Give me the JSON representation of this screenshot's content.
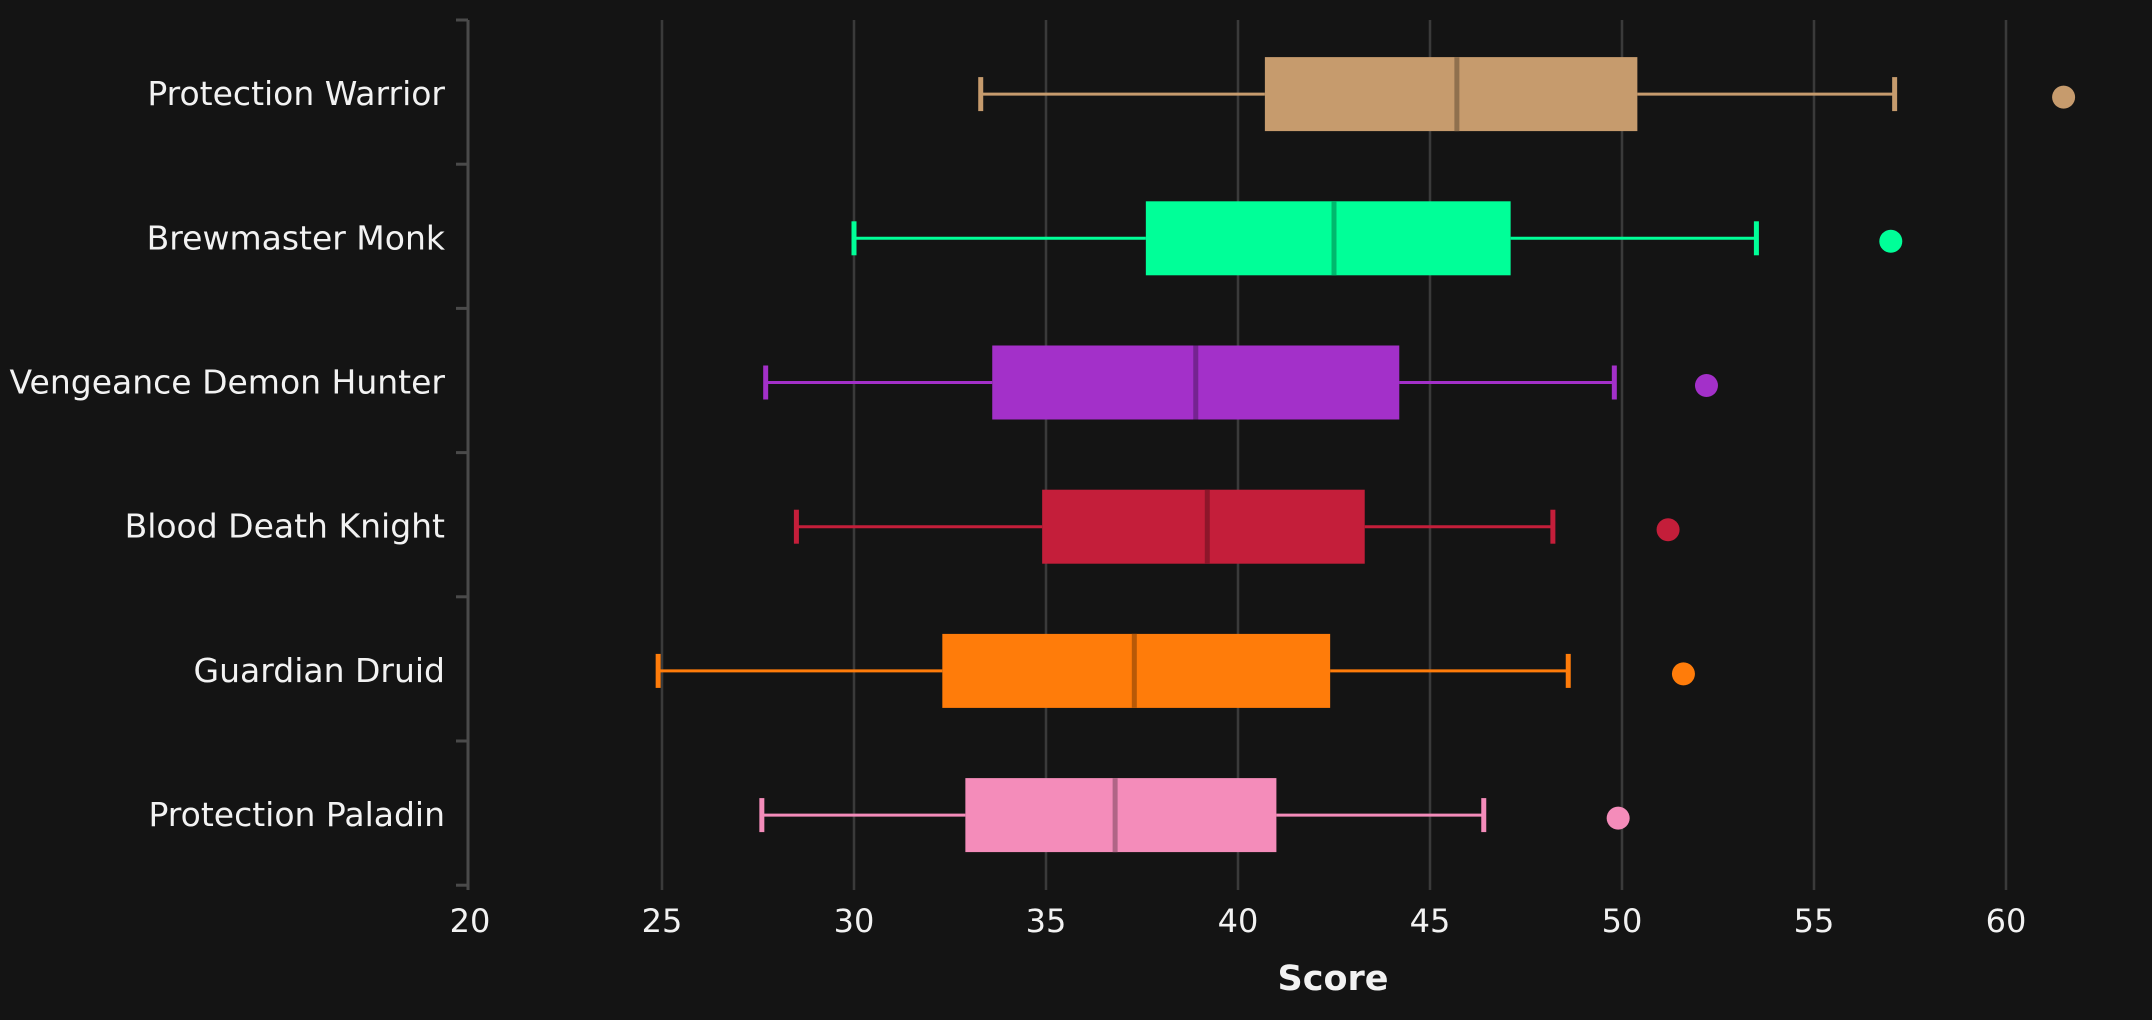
{
  "chart_data": {
    "type": "boxplot",
    "orientation": "horizontal",
    "xlabel": "Score",
    "xlim": [
      20,
      62.5
    ],
    "xticks": [
      20,
      25,
      30,
      35,
      40,
      45,
      50,
      55,
      60
    ],
    "grid": true,
    "background": "#141414",
    "series": [
      {
        "name": "Protection Warrior",
        "color": "#C69B6D",
        "whisker_low": 33.3,
        "q1": 40.7,
        "median": 45.7,
        "q3": 50.4,
        "whisker_high": 57.1,
        "outliers": [
          61.5
        ]
      },
      {
        "name": "Brewmaster Monk",
        "color": "#00FF98",
        "whisker_low": 30.0,
        "q1": 37.6,
        "median": 42.5,
        "q3": 47.1,
        "whisker_high": 53.5,
        "outliers": [
          57.0
        ]
      },
      {
        "name": "Vengeance Demon Hunter",
        "color": "#A330C9",
        "whisker_low": 27.7,
        "q1": 33.6,
        "median": 38.9,
        "q3": 44.2,
        "whisker_high": 49.8,
        "outliers": [
          52.2
        ]
      },
      {
        "name": "Blood Death Knight",
        "color": "#C41E3A",
        "whisker_low": 28.5,
        "q1": 34.9,
        "median": 39.2,
        "q3": 43.3,
        "whisker_high": 48.2,
        "outliers": [
          51.2
        ]
      },
      {
        "name": "Guardian Druid",
        "color": "#FF7C0A",
        "whisker_low": 24.9,
        "q1": 32.3,
        "median": 37.3,
        "q3": 42.4,
        "whisker_high": 48.6,
        "outliers": [
          51.6
        ]
      },
      {
        "name": "Protection Paladin",
        "color": "#F48CBA",
        "whisker_low": 27.6,
        "q1": 32.9,
        "median": 36.8,
        "q3": 41.0,
        "whisker_high": 46.4,
        "outliers": [
          49.9
        ]
      }
    ]
  }
}
